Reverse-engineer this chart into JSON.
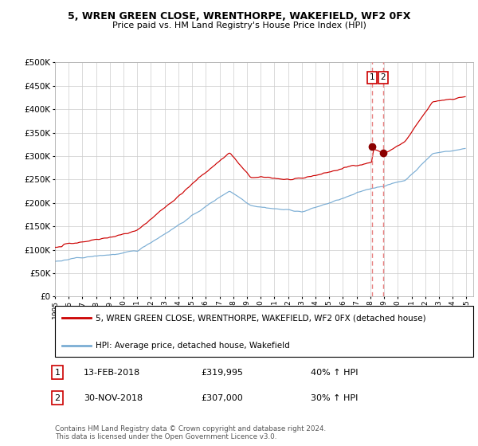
{
  "title": "5, WREN GREEN CLOSE, WRENTHORPE, WAKEFIELD, WF2 0FX",
  "subtitle": "Price paid vs. HM Land Registry's House Price Index (HPI)",
  "legend_red": "5, WREN GREEN CLOSE, WRENTHORPE, WAKEFIELD, WF2 0FX (detached house)",
  "legend_blue": "HPI: Average price, detached house, Wakefield",
  "sale1_date": "13-FEB-2018",
  "sale1_price": 319995,
  "sale1_label": "1",
  "sale1_pct": "40% ↑ HPI",
  "sale2_date": "30-NOV-2018",
  "sale2_price": 307000,
  "sale2_label": "2",
  "sale2_pct": "30% ↑ HPI",
  "sale1_x": 2018.12,
  "sale2_x": 2018.92,
  "copyright": "Contains HM Land Registry data © Crown copyright and database right 2024.\nThis data is licensed under the Open Government Licence v3.0.",
  "red_color": "#cc0000",
  "blue_color": "#7aadd4",
  "dashed_color": "#e88080",
  "background": "#ffffff",
  "grid_color": "#cccccc",
  "ylim": [
    0,
    500000
  ],
  "xlim": [
    1995.0,
    2025.5
  ]
}
